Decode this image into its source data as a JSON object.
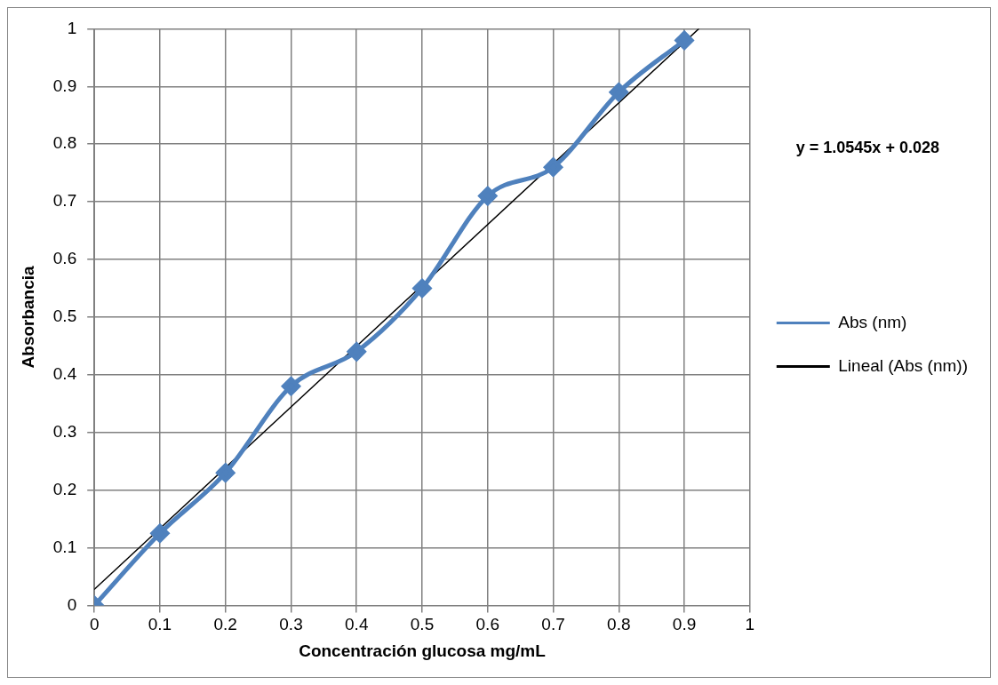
{
  "chart_data": {
    "type": "line",
    "xlabel": "Concentración glucosa mg/mL",
    "ylabel": "Absorbancia",
    "annotations": [
      "y = 1.0545x + 0.028"
    ],
    "series": [
      {
        "name": "Abs (nm)",
        "color": "#4f81bd",
        "marker": "diamond",
        "x": [
          0,
          0.1,
          0.2,
          0.3,
          0.4,
          0.5,
          0.6,
          0.7,
          0.8,
          0.9
        ],
        "values": [
          0,
          0.125,
          0.23,
          0.38,
          0.44,
          0.55,
          0.71,
          0.76,
          0.89,
          0.98
        ]
      },
      {
        "name": "Lineal (Abs (nm))",
        "color": "#000000",
        "marker": "none",
        "x": [
          0,
          0.922
        ],
        "values": [
          0.028,
          1.0
        ]
      }
    ],
    "xlim": [
      0,
      1
    ],
    "xticks": [
      0,
      0.1,
      0.2,
      0.3,
      0.4,
      0.5,
      0.6,
      0.7,
      0.8,
      0.9,
      1
    ],
    "ylim": [
      0,
      1
    ],
    "yticks": [
      0,
      0.1,
      0.2,
      0.3,
      0.4,
      0.5,
      0.6,
      0.7,
      0.8,
      0.9,
      1
    ],
    "grid": true,
    "legend": "right"
  }
}
